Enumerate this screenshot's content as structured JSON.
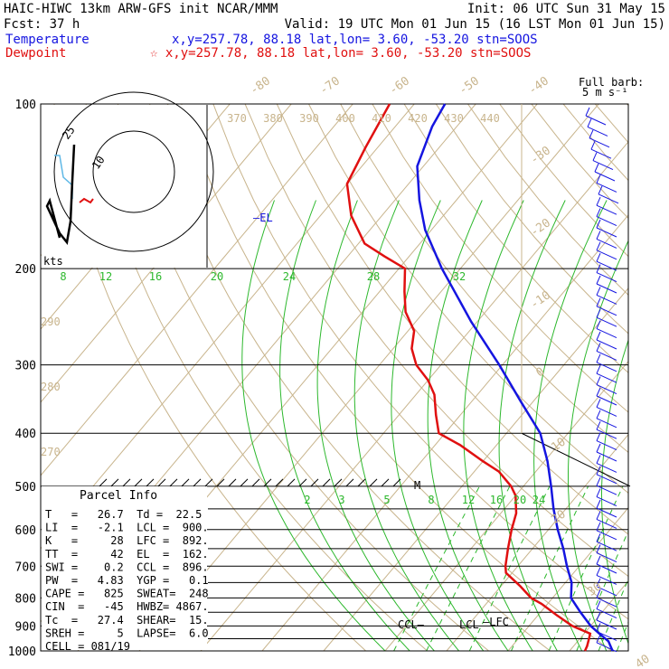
{
  "header": {
    "line1_left": "HAIC-HIWC 13km ARW-GFS init  NCAR/MMM",
    "line1_right": "Init: 06 UTC Sun 31 May 15",
    "line2_left": "Fcst:   37 h",
    "line2_right": "Valid: 19 UTC Mon 01 Jun 15 (16 LST Mon 01 Jun 15)",
    "temp_label": "Temperature",
    "temp_info": "x,y=257.78, 88.18    lat,lon=  3.60, -53.20  stn=SOOS",
    "dew_label": "Dewpoint",
    "dew_info": "☆ x,y=257.78, 88.18    lat,lon=  3.60, -53.20  stn=SOOS",
    "barb_title_1": "Full barb:",
    "barb_title_2": "5 m s⁻¹"
  },
  "colors": {
    "temperature": "#1515e0",
    "dewpoint": "#e01010",
    "isotherm": "#c8b48c",
    "mixing_ratio": "#2db82d",
    "barbs": "#1515e0"
  },
  "chart_data": {
    "type": "line",
    "y_axis": "pressure (hPa, log scale)",
    "pressure_ticks": [
      100,
      200,
      300,
      400,
      500,
      600,
      700,
      800,
      900,
      1000
    ],
    "top_isotherm_labels": [
      "-80",
      "-70",
      "-60",
      "-50",
      "-40"
    ],
    "right_isotherm_labels": [
      "-30",
      "-20",
      "-10",
      "0",
      "10",
      "20",
      "30",
      "40"
    ],
    "theta_labels_top": [
      "370",
      "380",
      "390",
      "400",
      "410",
      "420",
      "430",
      "440"
    ],
    "theta_labels_left": [
      "290",
      "280",
      "270"
    ],
    "mixing_ratio_labels_upper": [
      "8",
      "12",
      "16",
      "20",
      "24",
      "28",
      "32"
    ],
    "mixing_ratio_labels_lower": [
      "2",
      "3",
      "5",
      "8",
      "12",
      "16",
      "20",
      "24"
    ],
    "series": [
      {
        "name": "Temperature",
        "points": [
          [
            1000,
            27
          ],
          [
            960,
            25
          ],
          [
            930,
            22.5
          ],
          [
            900,
            20
          ],
          [
            850,
            16.5
          ],
          [
            800,
            13
          ],
          [
            750,
            11
          ],
          [
            700,
            8
          ],
          [
            650,
            5
          ],
          [
            600,
            1.5
          ],
          [
            550,
            -2
          ],
          [
            500,
            -5.5
          ],
          [
            450,
            -9.5
          ],
          [
            400,
            -14.5
          ],
          [
            350,
            -22
          ],
          [
            300,
            -30.5
          ],
          [
            250,
            -41
          ],
          [
            200,
            -53
          ],
          [
            170,
            -61
          ],
          [
            150,
            -66
          ],
          [
            130,
            -71
          ],
          [
            110,
            -74
          ],
          [
            100,
            -75
          ]
        ]
      },
      {
        "name": "Dewpoint",
        "points": [
          [
            1000,
            22.5
          ],
          [
            980,
            22.2
          ],
          [
            950,
            21.5
          ],
          [
            930,
            21
          ],
          [
            900,
            17
          ],
          [
            860,
            13
          ],
          [
            820,
            9
          ],
          [
            800,
            6.5
          ],
          [
            760,
            3
          ],
          [
            720,
            -1
          ],
          [
            700,
            -2
          ],
          [
            650,
            -4
          ],
          [
            600,
            -6
          ],
          [
            560,
            -7.5
          ],
          [
            520,
            -10
          ],
          [
            500,
            -12
          ],
          [
            470,
            -16
          ],
          [
            450,
            -20
          ],
          [
            420,
            -26
          ],
          [
            400,
            -31
          ],
          [
            370,
            -34
          ],
          [
            340,
            -37
          ],
          [
            320,
            -40
          ],
          [
            300,
            -44
          ],
          [
            280,
            -47
          ],
          [
            260,
            -49
          ],
          [
            240,
            -53
          ],
          [
            220,
            -56
          ],
          [
            200,
            -59
          ],
          [
            190,
            -64
          ],
          [
            180,
            -69
          ],
          [
            160,
            -75
          ],
          [
            140,
            -80
          ],
          [
            120,
            -82
          ],
          [
            100,
            -84
          ]
        ]
      }
    ],
    "annotations": [
      {
        "text": "—EL",
        "pressure": 162
      },
      {
        "text": "M",
        "pressure": 500
      },
      {
        "text": "CCL—",
        "pressure": 896
      },
      {
        "text": "LCL",
        "pressure": 900
      },
      {
        "text": "—LFC",
        "pressure": 892
      }
    ],
    "hodograph": {
      "ring_labels": [
        "25",
        "10"
      ],
      "units_label": "kts"
    },
    "parcel_info": {
      "title": "Parcel Info",
      "rows": [
        "T   =   26.7  Td =  22.5",
        "LI  =   -2.1  LCL =  900.",
        "K   =     28  LFC =  892.",
        "TT  =     42  EL  =  162.",
        "SWI =    0.2  CCL =  896.",
        "PW  =   4.83  YGP =   0.1",
        "CAPE =   825  SWEAT=  248",
        "CIN  =   -45  HWBZ= 4867.",
        "Tc  =   27.4  SHEAR=  15.",
        "SREH =     5  LAPSE=  6.0",
        "CELL = 081/19"
      ]
    }
  }
}
